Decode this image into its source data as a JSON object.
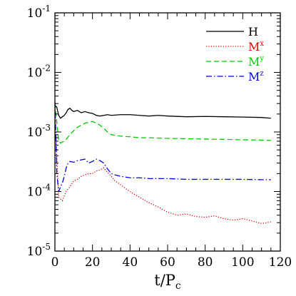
{
  "chart_data": {
    "type": "line",
    "title": "",
    "xlabel": "t/P",
    "xlabel_sub": "c",
    "ylabel": "",
    "xlim": [
      0,
      120
    ],
    "ylim": [
      1e-05,
      0.1
    ],
    "yscale": "log",
    "grid": false,
    "legend_position": "top-right",
    "x_ticks": [
      "0",
      "20",
      "40",
      "60",
      "80",
      "100",
      "120"
    ],
    "y_ticks": [
      {
        "base": "10",
        "exp": "-5",
        "value": 1e-05
      },
      {
        "base": "10",
        "exp": "-4",
        "value": 0.0001
      },
      {
        "base": "10",
        "exp": "-3",
        "value": 0.001
      },
      {
        "base": "10",
        "exp": "-2",
        "value": 0.01
      },
      {
        "base": "10",
        "exp": "-1",
        "value": 0.1
      }
    ],
    "series": [
      {
        "name": "H",
        "sup": "",
        "color": "#000000",
        "dash": "",
        "x": [
          0,
          1,
          2,
          3,
          4,
          5,
          6,
          7,
          8,
          9,
          10,
          12,
          14,
          16,
          18,
          20,
          22,
          24,
          26,
          28,
          30,
          35,
          40,
          45,
          50,
          55,
          60,
          70,
          80,
          90,
          100,
          110,
          115
        ],
        "y": [
          0.0028,
          0.0026,
          0.0019,
          0.0017,
          0.0018,
          0.0019,
          0.0021,
          0.0024,
          0.0025,
          0.0023,
          0.0022,
          0.0023,
          0.0021,
          0.0022,
          0.0021,
          0.00205,
          0.0019,
          0.00185,
          0.0019,
          0.00195,
          0.0019,
          0.00195,
          0.00195,
          0.0019,
          0.00185,
          0.0019,
          0.00185,
          0.0018,
          0.00182,
          0.0018,
          0.00178,
          0.00175,
          0.0017
        ]
      },
      {
        "name": "M",
        "sup": "x",
        "color": "#e00000",
        "dash": "1.2 2.2",
        "x": [
          0,
          1,
          2,
          3,
          4,
          5,
          6,
          8,
          10,
          12,
          14,
          16,
          18,
          20,
          22,
          24,
          26,
          28,
          30,
          32,
          35,
          38,
          40,
          45,
          50,
          55,
          60,
          65,
          70,
          75,
          80,
          85,
          90,
          95,
          100,
          105,
          110,
          113,
          115
        ],
        "y": [
          0.0028,
          0.0004,
          8e-05,
          7.5e-05,
          7e-05,
          8.5e-05,
          0.0001,
          0.00012,
          0.00015,
          0.00016,
          0.00018,
          0.00019,
          0.0002,
          0.0002,
          0.00022,
          0.00023,
          0.00025,
          0.00021,
          0.00018,
          0.00015,
          0.00013,
          0.00011,
          0.0001,
          8e-05,
          6.5e-05,
          5.5e-05,
          4.5e-05,
          4e-05,
          4.2e-05,
          3.8e-05,
          3.7e-05,
          3.9e-05,
          3.5e-05,
          3.3e-05,
          3.5e-05,
          3.2e-05,
          2.9e-05,
          3e-05,
          3.1e-05
        ]
      },
      {
        "name": "M",
        "sup": "y",
        "color": "#00cc00",
        "dash": "7 4",
        "x": [
          0,
          1,
          2,
          3,
          4,
          5,
          6,
          8,
          10,
          12,
          14,
          16,
          18,
          20,
          22,
          24,
          26,
          28,
          30,
          35,
          40,
          45,
          50,
          60,
          70,
          80,
          90,
          100,
          110,
          115
        ],
        "y": [
          0.003,
          0.0015,
          0.0007,
          0.00065,
          0.00068,
          0.0007,
          0.00075,
          0.0009,
          0.00105,
          0.0012,
          0.0013,
          0.0014,
          0.00145,
          0.0015,
          0.0014,
          0.0013,
          0.00115,
          0.001,
          0.0009,
          0.00085,
          0.00083,
          0.0008,
          0.0008,
          0.00078,
          0.00077,
          0.00076,
          0.00075,
          0.00074,
          0.00073,
          0.00072
        ]
      },
      {
        "name": "M",
        "sup": "z",
        "color": "#0000dd",
        "dash": "8 3 1.5 3",
        "x": [
          0,
          1,
          2,
          3,
          4,
          5,
          6,
          7,
          8,
          10,
          12,
          14,
          16,
          18,
          20,
          22,
          24,
          26,
          28,
          30,
          32,
          35,
          40,
          45,
          50,
          60,
          70,
          80,
          90,
          100,
          110,
          115
        ],
        "y": [
          0.0032,
          0.0002,
          0.0001,
          0.00012,
          0.00014,
          0.00018,
          0.00025,
          0.0003,
          0.00032,
          0.00031,
          0.00033,
          0.00034,
          0.00035,
          0.0003,
          0.00032,
          0.00035,
          0.00033,
          0.0003,
          0.00024,
          0.0002,
          0.00019,
          0.00018,
          0.00017,
          0.00017,
          0.000165,
          0.000165,
          0.00016,
          0.00016,
          0.00016,
          0.00016,
          0.000158,
          0.000158
        ]
      }
    ]
  }
}
